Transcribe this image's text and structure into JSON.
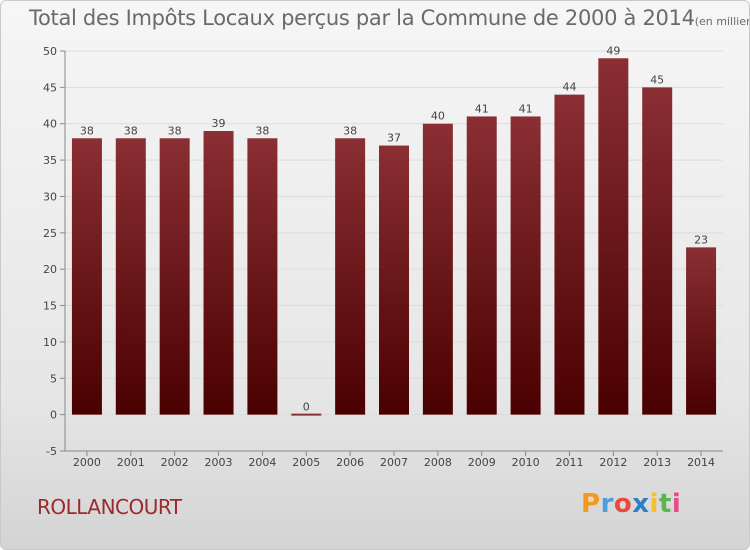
{
  "header": {
    "title": "Total des Impôts Locaux perçus par la Commune de 2000 à 2014",
    "unit": "(en milliers d'€)"
  },
  "footer": {
    "commune": "ROLLANCOURT",
    "brand_letters": [
      "P",
      "r",
      "o",
      "x",
      "i",
      "t",
      "i"
    ],
    "brand_colors": [
      "#f29a1e",
      "#4a9fdc",
      "#e84a3c",
      "#2a7fc8",
      "#f2c12e",
      "#5bb54d",
      "#e84a8a"
    ]
  },
  "colors": {
    "bar_top": "#8a2f34",
    "bar_bottom": "#4a0000",
    "grid": "#dcdcdc",
    "axis": "#888888"
  },
  "chart_data": {
    "type": "bar",
    "categories": [
      "2000",
      "2001",
      "2002",
      "2003",
      "2004",
      "2005",
      "2006",
      "2007",
      "2008",
      "2009",
      "2010",
      "2011",
      "2012",
      "2013",
      "2014"
    ],
    "values": [
      38,
      38,
      38,
      39,
      38,
      0,
      38,
      37,
      40,
      41,
      41,
      44,
      49,
      45,
      23
    ],
    "ylim": [
      -5,
      50
    ],
    "yticks": [
      -5,
      0,
      5,
      10,
      15,
      20,
      25,
      30,
      35,
      40,
      45,
      50
    ],
    "grid": true
  }
}
